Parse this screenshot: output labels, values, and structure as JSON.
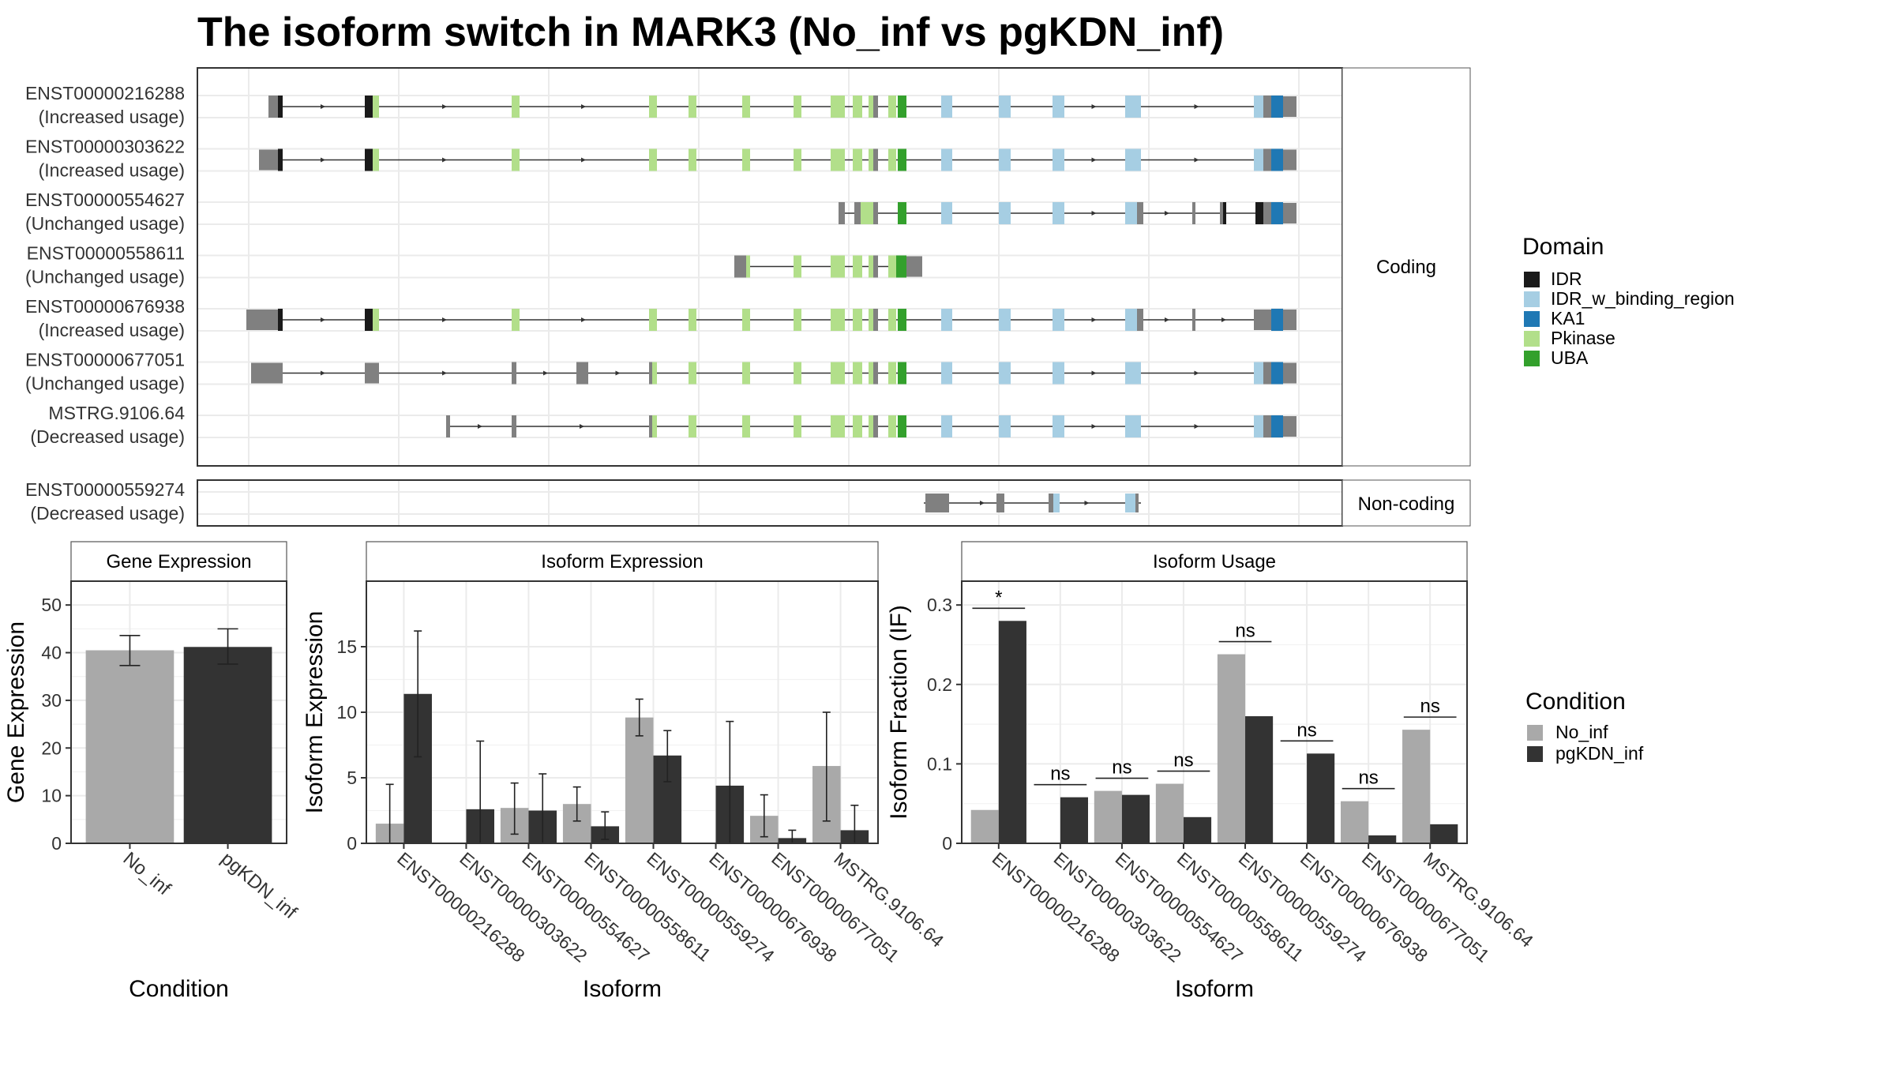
{
  "title": "The isoform switch in MARK3 (No_inf vs pgKDN_inf)",
  "colors": {
    "IDR": "#1a1a1a",
    "IDR_w_binding_region": "#a6cee3",
    "KA1": "#1f78b4",
    "Pkinase": "#b2df8a",
    "UBA": "#33a02c",
    "exon": "#808080",
    "No_inf": "#a9a9a9",
    "pgKDN_inf": "#333333"
  },
  "structure": {
    "coding_strip": "Coding",
    "noncoding_strip": "Non-coding",
    "legend_title": "Domain",
    "legend_items": [
      "IDR",
      "IDR_w_binding_region",
      "KA1",
      "Pkinase",
      "UBA"
    ],
    "coding": [
      {
        "id": "ENST00000216288",
        "usage": "(Increased usage)",
        "type": "full"
      },
      {
        "id": "ENST00000303622",
        "usage": "(Increased usage)",
        "type": "full"
      },
      {
        "id": "ENST00000554627",
        "usage": "(Unchanged usage)",
        "type": "partial"
      },
      {
        "id": "ENST00000558611",
        "usage": "(Unchanged usage)",
        "type": "short"
      },
      {
        "id": "ENST00000676938",
        "usage": "(Increased usage)",
        "type": "full_alt"
      },
      {
        "id": "ENST00000677051",
        "usage": "(Unchanged usage)",
        "type": "alt_start"
      },
      {
        "id": "MSTRG.9106.64",
        "usage": "(Decreased usage)",
        "type": "mstrg"
      }
    ],
    "noncoding": [
      {
        "id": "ENST00000559274",
        "usage": "(Decreased usage)",
        "type": "noncoding"
      }
    ]
  },
  "chart_data": [
    {
      "type": "bar",
      "title": "Gene Expression",
      "xlabel": "Condition",
      "ylabel": "Gene Expression",
      "ylim": [
        0,
        55
      ],
      "yticks": [
        0,
        10,
        20,
        30,
        40,
        50
      ],
      "categories": [
        "No_inf",
        "pgKDN_inf"
      ],
      "values": [
        40.5,
        41.2
      ],
      "error": [
        [
          37.3,
          43.6
        ],
        [
          37.6,
          45.0
        ]
      ]
    },
    {
      "type": "bar",
      "title": "Isoform Expression",
      "xlabel": "Isoform",
      "ylabel": "Isoform Expression",
      "ylim": [
        0,
        20
      ],
      "yticks": [
        0,
        5,
        10,
        15
      ],
      "categories": [
        "ENST00000216288",
        "ENST00000303622",
        "ENST00000554627",
        "ENST00000558611",
        "ENST00000559274",
        "ENST00000676938",
        "ENST00000677051",
        "MSTRG.9106.64"
      ],
      "series": [
        {
          "name": "No_inf",
          "values": [
            1.5,
            0.0,
            2.7,
            3.0,
            9.6,
            0.0,
            2.1,
            5.9
          ],
          "lower": [
            0.0,
            0.0,
            0.7,
            1.7,
            8.2,
            0.0,
            0.5,
            1.7
          ],
          "upper": [
            4.5,
            0.0,
            4.6,
            4.3,
            11.0,
            0.0,
            3.7,
            10.0
          ]
        },
        {
          "name": "pgKDN_inf",
          "values": [
            11.4,
            2.6,
            2.5,
            1.3,
            6.7,
            4.4,
            0.4,
            1.0
          ],
          "lower": [
            6.6,
            0.0,
            0.0,
            0.3,
            4.7,
            0.0,
            0.0,
            0.0
          ],
          "upper": [
            16.2,
            7.8,
            5.3,
            2.4,
            8.6,
            9.3,
            1.0,
            2.9
          ]
        }
      ]
    },
    {
      "type": "bar",
      "title": "Isoform Usage",
      "xlabel": "Isoform",
      "ylabel": "Isoform Fraction (IF)",
      "ylim": [
        0,
        0.33
      ],
      "yticks": [
        0.0,
        0.1,
        0.2,
        0.3
      ],
      "categories": [
        "ENST00000216288",
        "ENST00000303622",
        "ENST00000554627",
        "ENST00000558611",
        "ENST00000559274",
        "ENST00000676938",
        "ENST00000677051",
        "MSTRG.9106.64"
      ],
      "series": [
        {
          "name": "No_inf",
          "values": [
            0.042,
            0.0,
            0.066,
            0.075,
            0.238,
            0.0,
            0.053,
            0.143
          ]
        },
        {
          "name": "pgKDN_inf",
          "values": [
            0.28,
            0.058,
            0.061,
            0.033,
            0.16,
            0.113,
            0.01,
            0.024
          ]
        }
      ],
      "significance": [
        "*",
        "ns",
        "ns",
        "ns",
        "ns",
        "ns",
        "ns",
        "ns"
      ],
      "legend_title": "Condition"
    }
  ]
}
